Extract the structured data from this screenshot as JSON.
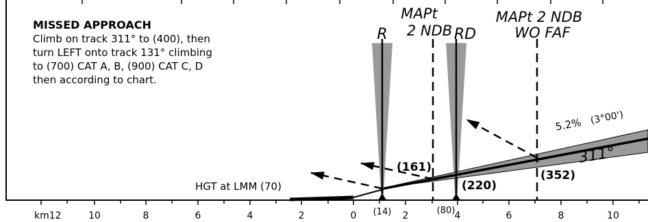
{
  "missed_approach": {
    "title": "MISSED APPROACH",
    "lines": [
      "Climb on track 311° to (400), then",
      "turn LEFT onto track 131° climbing",
      "to (700) CAT A, B, (900) CAT C, D",
      "then according to chart."
    ]
  },
  "fixes": {
    "r": "R",
    "mapt_line1": "MAPt",
    "mapt_line2": "2 NDB",
    "rd": "RD",
    "mapt_wo_faf_line1": "MAPt 2 NDB",
    "mapt_wo_faf_line2": "WO FAF"
  },
  "heights": {
    "h161": "(161)",
    "h220": "(220)",
    "h352": "(352)",
    "hgt_label": "HGT at LMM (70)",
    "h14": "(14)",
    "h80": "(80)"
  },
  "climb": {
    "gradient": "5.2%",
    "angle": "(3°00')",
    "track": "311°"
  },
  "scale": {
    "unit_label": "km12",
    "left_ticks": [
      "10",
      "8",
      "6",
      "4",
      "2",
      "0"
    ],
    "right_ticks": [
      "2",
      "4",
      "6",
      "8",
      "10"
    ]
  }
}
